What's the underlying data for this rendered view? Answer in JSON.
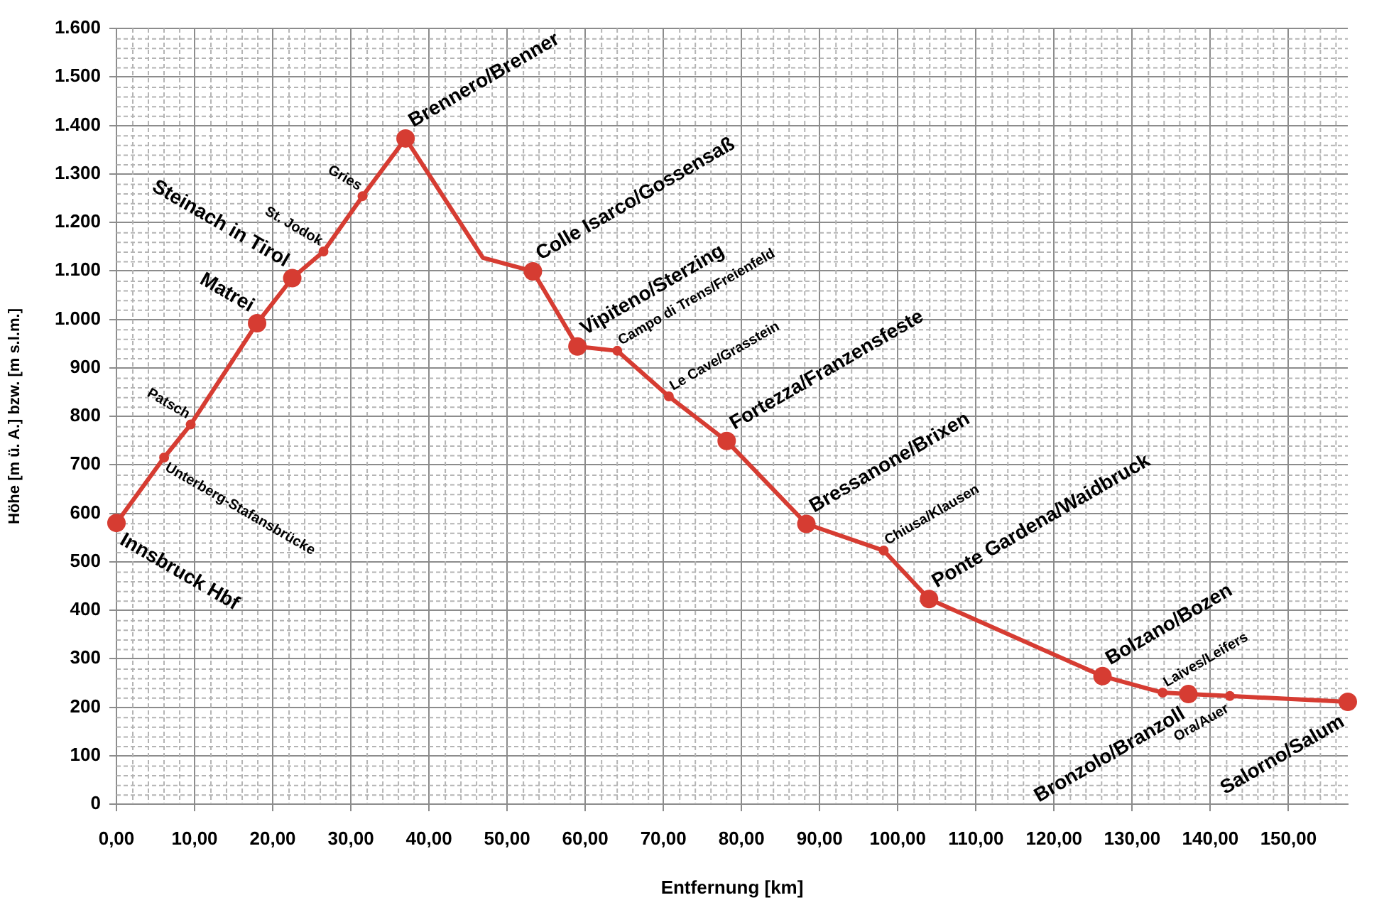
{
  "chart_data": {
    "type": "line",
    "xlabel": "Entfernung [km]",
    "ylabel": "Höhe [m ü. A.] bzw. [m s.l.m.]",
    "x": [
      0,
      6.1,
      9.5,
      18.0,
      22.5,
      26.5,
      31.5,
      37.0,
      46.9,
      53.3,
      59.0,
      64.1,
      70.7,
      78.1,
      88.3,
      98.2,
      104.0,
      126.2,
      133.9,
      137.2,
      142.5,
      157.6
    ],
    "series": [
      {
        "color": "#d63c32",
        "values": [
          580,
          715,
          783,
          992,
          1085,
          1140,
          1254,
          1373,
          1127,
          1099,
          944,
          935,
          841,
          749,
          578,
          523,
          423,
          264,
          230,
          227,
          223,
          211
        ]
      }
    ],
    "xlim": [
      0,
      157.6
    ],
    "xticks": [
      {
        "value": 0,
        "label": "0,00"
      },
      {
        "value": 10,
        "label": "10,00"
      },
      {
        "value": 20,
        "label": "20,00"
      },
      {
        "value": 30,
        "label": "30,00"
      },
      {
        "value": 40,
        "label": "40,00"
      },
      {
        "value": 50,
        "label": "50,00"
      },
      {
        "value": 60,
        "label": "60,00"
      },
      {
        "value": 70,
        "label": "70,00"
      },
      {
        "value": 80,
        "label": "80,00"
      },
      {
        "value": 90,
        "label": "90,00"
      },
      {
        "value": 100,
        "label": "100,00"
      },
      {
        "value": 110,
        "label": "110,00"
      },
      {
        "value": 120,
        "label": "120,00"
      },
      {
        "value": 130,
        "label": "130,00"
      },
      {
        "value": 140,
        "label": "140,00"
      },
      {
        "value": 150,
        "label": "150,00"
      }
    ],
    "ylim": [
      0,
      1600
    ],
    "yticks": [
      0,
      100,
      200,
      300,
      400,
      500,
      600,
      700,
      800,
      900,
      {
        "value": 1000,
        "label": "1.000"
      },
      {
        "value": 1100,
        "label": "1.100"
      },
      {
        "value": 1200,
        "label": "1.200"
      },
      {
        "value": 1300,
        "label": "1.300"
      },
      {
        "value": 1400,
        "label": "1.400"
      },
      {
        "value": 1500,
        "label": "1.500"
      },
      {
        "value": 1600,
        "label": "1.600"
      }
    ],
    "grid": true,
    "legend": false,
    "marker": "circle",
    "line_style": "solid",
    "annotations": [
      {
        "text": "Innsbruck Hbf",
        "x": 0,
        "y": 580
      },
      {
        "text": "Unterberg-Stafansbrücke",
        "x": 6.1,
        "y": 715
      },
      {
        "text": "Patsch",
        "x": 9.5,
        "y": 783
      },
      {
        "text": "Matrei",
        "x": 18.0,
        "y": 992
      },
      {
        "text": "Steinach in Tirol",
        "x": 22.5,
        "y": 1085
      },
      {
        "text": "St. Jodok",
        "x": 26.5,
        "y": 1140
      },
      {
        "text": "Gries",
        "x": 31.5,
        "y": 1254
      },
      {
        "text": "Brennero/Brenner",
        "x": 37.0,
        "y": 1373
      },
      {
        "text": "Colle Isarco/Gossensaß",
        "x": 53.3,
        "y": 1099
      },
      {
        "text": "Vipiteno/Sterzing",
        "x": 59.0,
        "y": 944
      },
      {
        "text": "Campo di Trens/Freienfeld",
        "x": 64.1,
        "y": 935
      },
      {
        "text": "Le Cave/Grasstein",
        "x": 70.7,
        "y": 841
      },
      {
        "text": "Fortezza/Franzensfeste",
        "x": 78.1,
        "y": 749
      },
      {
        "text": "Bressanone/Brixen",
        "x": 88.3,
        "y": 578
      },
      {
        "text": "Chiusa/Klausen",
        "x": 98.2,
        "y": 523
      },
      {
        "text": "Ponte Gardena/Waidbruck",
        "x": 104.0,
        "y": 423
      },
      {
        "text": "Bolzano/Bozen",
        "x": 126.2,
        "y": 264
      },
      {
        "text": "Laives/Leifers",
        "x": 133.9,
        "y": 230
      },
      {
        "text": "Bronzolo/Branzoll",
        "x": 137.2,
        "y": 227
      },
      {
        "text": "Ora/Auer",
        "x": 142.5,
        "y": 223
      },
      {
        "text": "Salorno/Salum",
        "x": 157.6,
        "y": 211
      }
    ]
  }
}
